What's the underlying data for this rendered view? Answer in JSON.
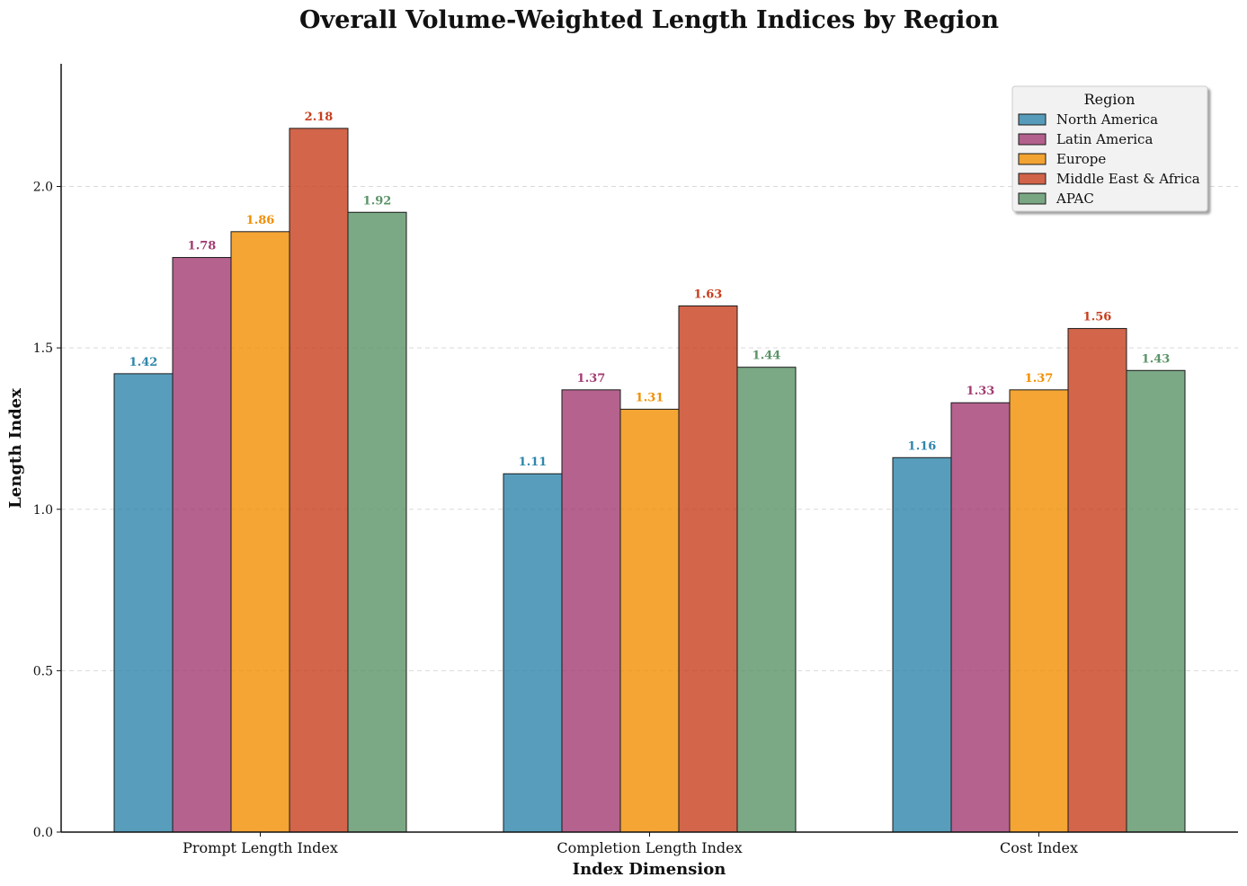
{
  "chart_data": {
    "type": "bar",
    "title": "Overall Volume-Weighted Length Indices by Region",
    "xlabel": "Index Dimension",
    "ylabel": "Length Index",
    "categories": [
      "Prompt Length Index",
      "Completion Length Index",
      "Cost Index"
    ],
    "ylim": [
      0,
      2.38
    ],
    "yticks": [
      "0.0",
      "0.5",
      "1.0",
      "1.5",
      "2.0"
    ],
    "grid": "horizontal dashed",
    "legend": {
      "title": "Region",
      "placement": "top-right"
    },
    "series": [
      {
        "name": "North America",
        "color": "#2e86ab",
        "values": [
          1.42,
          1.11,
          1.16
        ],
        "labels": [
          "1.42",
          "1.11",
          "1.16"
        ]
      },
      {
        "name": "Latin America",
        "color": "#a23b72",
        "values": [
          1.78,
          1.37,
          1.33
        ],
        "labels": [
          "1.78",
          "1.37",
          "1.33"
        ]
      },
      {
        "name": "Europe",
        "color": "#f18f01",
        "values": [
          1.86,
          1.31,
          1.37
        ],
        "labels": [
          "1.86",
          "1.31",
          "1.37"
        ]
      },
      {
        "name": "Middle East & Africa",
        "color": "#c73e1d",
        "values": [
          2.18,
          1.63,
          1.56
        ],
        "labels": [
          "2.18",
          "1.63",
          "1.56"
        ]
      },
      {
        "name": "APAC",
        "color": "#5a9367",
        "values": [
          1.92,
          1.44,
          1.43
        ],
        "labels": [
          "1.92",
          "1.44",
          "1.43"
        ]
      }
    ]
  }
}
